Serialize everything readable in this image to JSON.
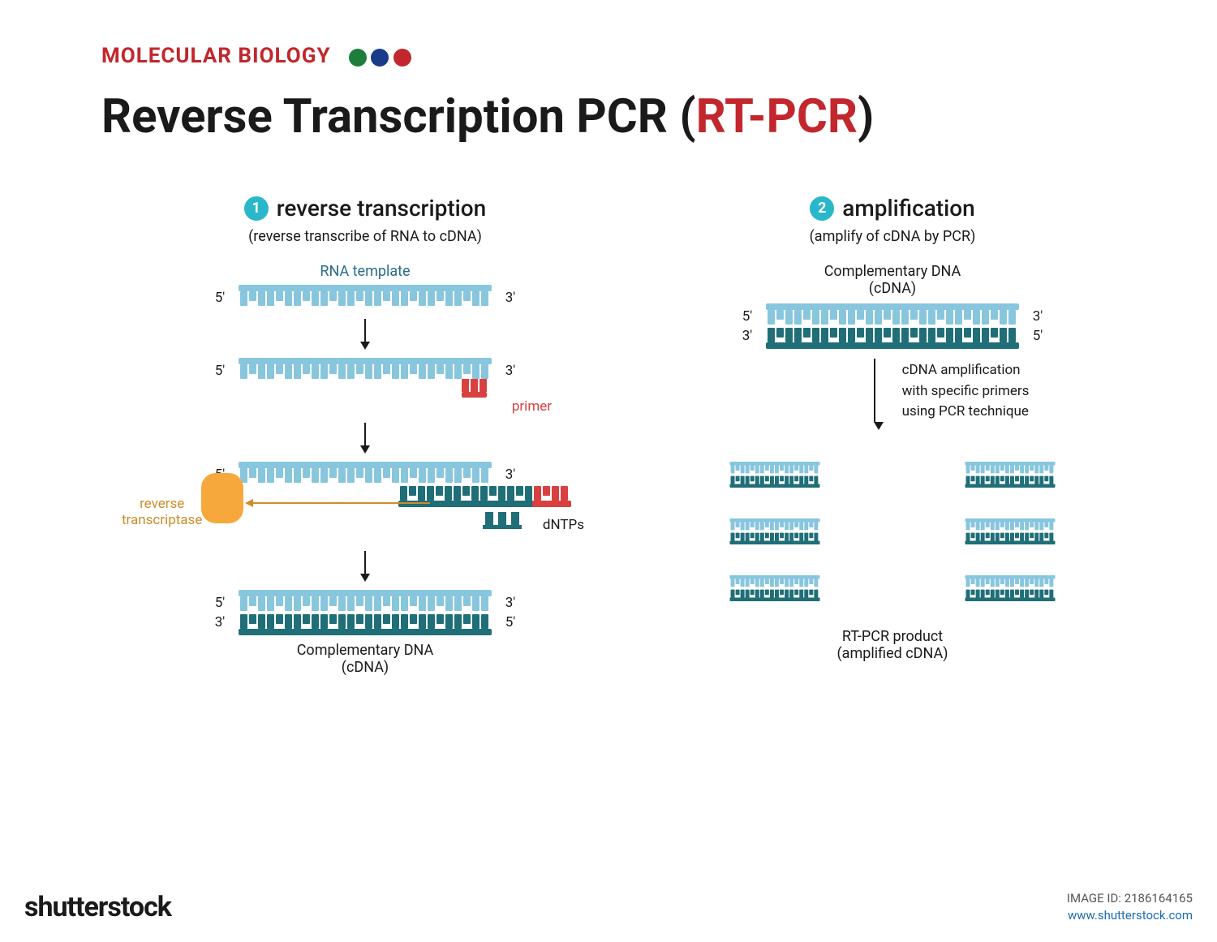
{
  "header": {
    "category": "MOLECULAR BIOLOGY",
    "dot_colors": [
      "#1e7d3a",
      "#1a3a8a",
      "#c1272d"
    ]
  },
  "title": {
    "main": "Reverse Transcription PCR (",
    "accent": "RT-PCR",
    "close": ")"
  },
  "colors": {
    "rna": "#88c6de",
    "cdna": "#1f6e78",
    "primer": "#d94141",
    "enzyme": "#f7a83c",
    "enzyme_label": "#d18b2a",
    "ext_arrow": "#d18b2a",
    "step_num_bg": "#2ab7ca"
  },
  "step1": {
    "num": "1",
    "title": "reverse transcription",
    "subtitle": "(reverse transcribe of RNA to cDNA)",
    "rna_template_label": "RNA template",
    "end5": "5'",
    "end3": "3'",
    "primer_label": "primer",
    "enzyme_label": "reverse\ntranscriptase",
    "dntps_label": "dNTPs",
    "cdna_label1": "Complementary DNA",
    "cdna_label2": "(cDNA)",
    "teeth_count": 28
  },
  "step2": {
    "num": "2",
    "title": "amplification",
    "subtitle": "(amplify of cDNA by PCR)",
    "cdna_label1": "Complementary DNA",
    "cdna_label2": "(cDNA)",
    "end5": "5'",
    "end3": "3'",
    "arrow_note": "cDNA amplification\nwith specific primers\nusing PCR technique",
    "product_label1": "RT-PCR product",
    "product_label2": "(amplified cDNA)",
    "product_copies": 6,
    "mini_teeth": 18
  },
  "footer": {
    "logo": "shutterstock",
    "image_id_label": "IMAGE ID:",
    "image_id": "2186164165",
    "link": "www.shutterstock.com"
  }
}
